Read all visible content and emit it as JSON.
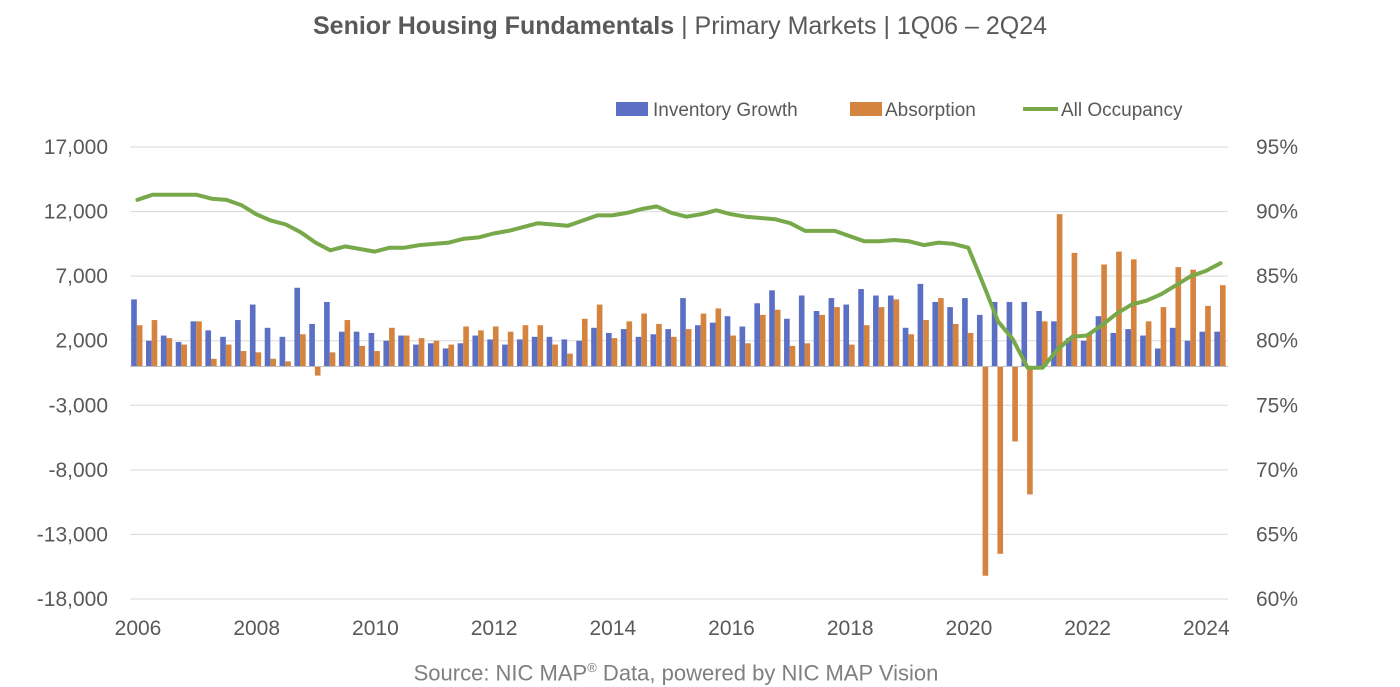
{
  "title": {
    "bold": "Senior Housing Fundamentals",
    "rest": " | Primary Markets | 1Q06 – 2Q24"
  },
  "source": {
    "before": "Source: NIC MAP",
    "sup": "®",
    "after": " Data, powered by NIC MAP Vision"
  },
  "colors": {
    "inventory": "#5b6fc4",
    "absorption": "#d4843f",
    "occupancy": "#77a94a",
    "grid": "#d9d9d9",
    "axis": "#bfbfbf"
  },
  "chart_data": {
    "type": "bar",
    "title": "Senior Housing Fundamentals | Primary Markets | 1Q06 – 2Q24",
    "y_left": {
      "min": -18000,
      "max": 17000,
      "ticks": [
        "17,000",
        "12,000",
        "7,000",
        "2,000",
        "-3,000",
        "-8,000",
        "-13,000",
        "-18,000"
      ]
    },
    "y_right": {
      "min": 60,
      "max": 95,
      "ticks": [
        "95%",
        "90%",
        "85%",
        "80%",
        "75%",
        "70%",
        "65%",
        "60%"
      ]
    },
    "x_ticks": [
      "2006",
      "2008",
      "2010",
      "2012",
      "2014",
      "2016",
      "2018",
      "2020",
      "2022",
      "2024"
    ],
    "grid": true,
    "legend_position": "top",
    "legend": [
      "Inventory Growth",
      "Absorption",
      "All Occupancy"
    ],
    "series": [
      {
        "name": "Inventory Growth",
        "type": "bar",
        "axis": "left",
        "values": [
          5200,
          2000,
          2400,
          1900,
          3500,
          2800,
          2300,
          3600,
          4800,
          3000,
          2300,
          6100,
          3300,
          5000,
          2700,
          2700,
          2600,
          2000,
          2400,
          1700,
          1800,
          1400,
          1800,
          2400,
          2100,
          1700,
          2100,
          2300,
          2300,
          2100,
          2000,
          3000,
          2600,
          2900,
          2300,
          2500,
          2900,
          5300,
          3200,
          3400,
          3900,
          3100,
          4900,
          5900,
          3700,
          5500,
          4300,
          5300,
          4800,
          6000,
          5500,
          5500,
          3000,
          6400,
          5000,
          4600,
          5300,
          4000,
          5000,
          5000,
          5000,
          4300,
          3500,
          2200,
          2000,
          3900,
          2600,
          2900,
          2400,
          1400,
          3000,
          2000,
          2700,
          2700
        ]
      },
      {
        "name": "Absorption",
        "type": "bar",
        "axis": "left",
        "values": [
          3200,
          3600,
          2200,
          1700,
          3500,
          600,
          1700,
          1200,
          1100,
          600,
          400,
          2500,
          -700,
          1100,
          3600,
          1600,
          1200,
          3000,
          2400,
          2200,
          2000,
          1700,
          3100,
          2800,
          3100,
          2700,
          3200,
          3200,
          1700,
          1000,
          3700,
          4800,
          2200,
          3500,
          4100,
          3300,
          2300,
          2900,
          4100,
          4500,
          2400,
          1800,
          4000,
          4400,
          1600,
          1800,
          4000,
          4600,
          1700,
          3200,
          4600,
          5200,
          2500,
          3600,
          5300,
          3300,
          2600,
          -16200,
          -14500,
          -5800,
          -9900,
          3500,
          11800,
          8800,
          2500,
          7900,
          8900,
          8300,
          3500,
          4600,
          7700,
          7500,
          4700,
          6300
        ]
      },
      {
        "name": "All Occupancy",
        "type": "line",
        "axis": "right",
        "values": [
          90.9,
          91.3,
          91.3,
          91.3,
          91.3,
          91.0,
          90.9,
          90.5,
          89.8,
          89.3,
          89.0,
          88.4,
          87.6,
          87.0,
          87.3,
          87.1,
          86.9,
          87.2,
          87.2,
          87.4,
          87.5,
          87.6,
          87.9,
          88.0,
          88.3,
          88.5,
          88.8,
          89.1,
          89.0,
          88.9,
          89.3,
          89.7,
          89.7,
          89.9,
          90.2,
          90.4,
          89.9,
          89.6,
          89.8,
          90.1,
          89.8,
          89.6,
          89.5,
          89.4,
          89.1,
          88.5,
          88.5,
          88.5,
          88.1,
          87.7,
          87.7,
          87.8,
          87.7,
          87.4,
          87.6,
          87.5,
          87.2,
          84.4,
          81.5,
          80.1,
          77.9,
          77.9,
          79.3,
          80.3,
          80.4,
          81.2,
          82.1,
          82.8,
          83.1,
          83.6,
          84.3,
          85.0,
          85.4,
          86.0
        ]
      }
    ]
  }
}
